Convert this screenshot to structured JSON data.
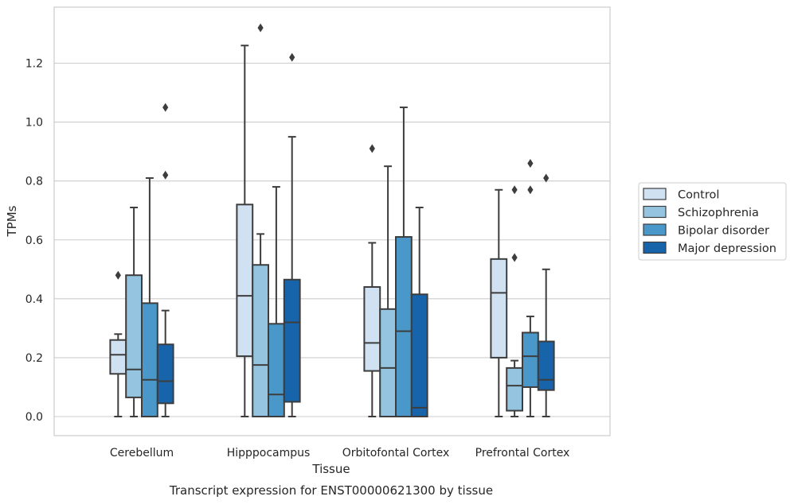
{
  "chart_data": {
    "type": "box",
    "title": "Transcript expression for ENST00000621300 by tissue",
    "xlabel": "Tissue",
    "ylabel": "TPMs",
    "ylim": [
      -0.065,
      1.39
    ],
    "yticks": [
      0.0,
      0.2,
      0.4,
      0.6,
      0.8,
      1.0,
      1.2
    ],
    "ytick_labels": [
      "0.0",
      "0.2",
      "0.4",
      "0.6",
      "0.8",
      "1.0",
      "1.2"
    ],
    "grid": "horizontal",
    "legend_position": "right",
    "categories": [
      "Cerebellum",
      "Hipppocampus",
      "Orbitofontal Cortex",
      "Prefrontal Cortex"
    ],
    "series": [
      {
        "name": "Control",
        "color": "#d0e1f2",
        "boxes": [
          {
            "whisker_low": 0.0,
            "q1": 0.145,
            "median": 0.21,
            "q3": 0.26,
            "whisker_high": 0.28,
            "outliers": [
              0.48
            ]
          },
          {
            "whisker_low": 0.0,
            "q1": 0.205,
            "median": 0.41,
            "q3": 0.72,
            "whisker_high": 1.26,
            "outliers": []
          },
          {
            "whisker_low": 0.0,
            "q1": 0.155,
            "median": 0.25,
            "q3": 0.44,
            "whisker_high": 0.59,
            "outliers": [
              0.91
            ]
          },
          {
            "whisker_low": 0.0,
            "q1": 0.2,
            "median": 0.42,
            "q3": 0.535,
            "whisker_high": 0.77,
            "outliers": []
          }
        ]
      },
      {
        "name": "Schizophrenia",
        "color": "#94c4df",
        "boxes": [
          {
            "whisker_low": 0.0,
            "q1": 0.065,
            "median": 0.16,
            "q3": 0.48,
            "whisker_high": 0.71,
            "outliers": []
          },
          {
            "whisker_low": 0.0,
            "q1": 0.0,
            "median": 0.175,
            "q3": 0.515,
            "whisker_high": 0.62,
            "outliers": [
              1.32
            ]
          },
          {
            "whisker_low": 0.0,
            "q1": 0.0,
            "median": 0.165,
            "q3": 0.365,
            "whisker_high": 0.85,
            "outliers": []
          },
          {
            "whisker_low": 0.0,
            "q1": 0.02,
            "median": 0.105,
            "q3": 0.165,
            "whisker_high": 0.19,
            "outliers": [
              0.54,
              0.77
            ]
          }
        ]
      },
      {
        "name": "Bipolar disorder",
        "color": "#4a98c9",
        "boxes": [
          {
            "whisker_low": 0.0,
            "q1": 0.0,
            "median": 0.125,
            "q3": 0.385,
            "whisker_high": 0.81,
            "outliers": []
          },
          {
            "whisker_low": 0.0,
            "q1": 0.0,
            "median": 0.075,
            "q3": 0.315,
            "whisker_high": 0.78,
            "outliers": []
          },
          {
            "whisker_low": 0.0,
            "q1": 0.0,
            "median": 0.29,
            "q3": 0.61,
            "whisker_high": 1.05,
            "outliers": []
          },
          {
            "whisker_low": 0.0,
            "q1": 0.1,
            "median": 0.205,
            "q3": 0.285,
            "whisker_high": 0.34,
            "outliers": [
              0.77,
              0.86
            ]
          }
        ]
      },
      {
        "name": "Major depression",
        "color": "#1764ab",
        "boxes": [
          {
            "whisker_low": 0.0,
            "q1": 0.045,
            "median": 0.12,
            "q3": 0.245,
            "whisker_high": 0.36,
            "outliers": [
              0.82,
              1.05
            ]
          },
          {
            "whisker_low": 0.0,
            "q1": 0.05,
            "median": 0.32,
            "q3": 0.465,
            "whisker_high": 0.95,
            "outliers": [
              1.22
            ]
          },
          {
            "whisker_low": 0.0,
            "q1": 0.0,
            "median": 0.03,
            "q3": 0.415,
            "whisker_high": 0.71,
            "outliers": []
          },
          {
            "whisker_low": 0.0,
            "q1": 0.09,
            "median": 0.125,
            "q3": 0.255,
            "whisker_high": 0.5,
            "outliers": [
              0.81
            ]
          }
        ]
      }
    ]
  }
}
